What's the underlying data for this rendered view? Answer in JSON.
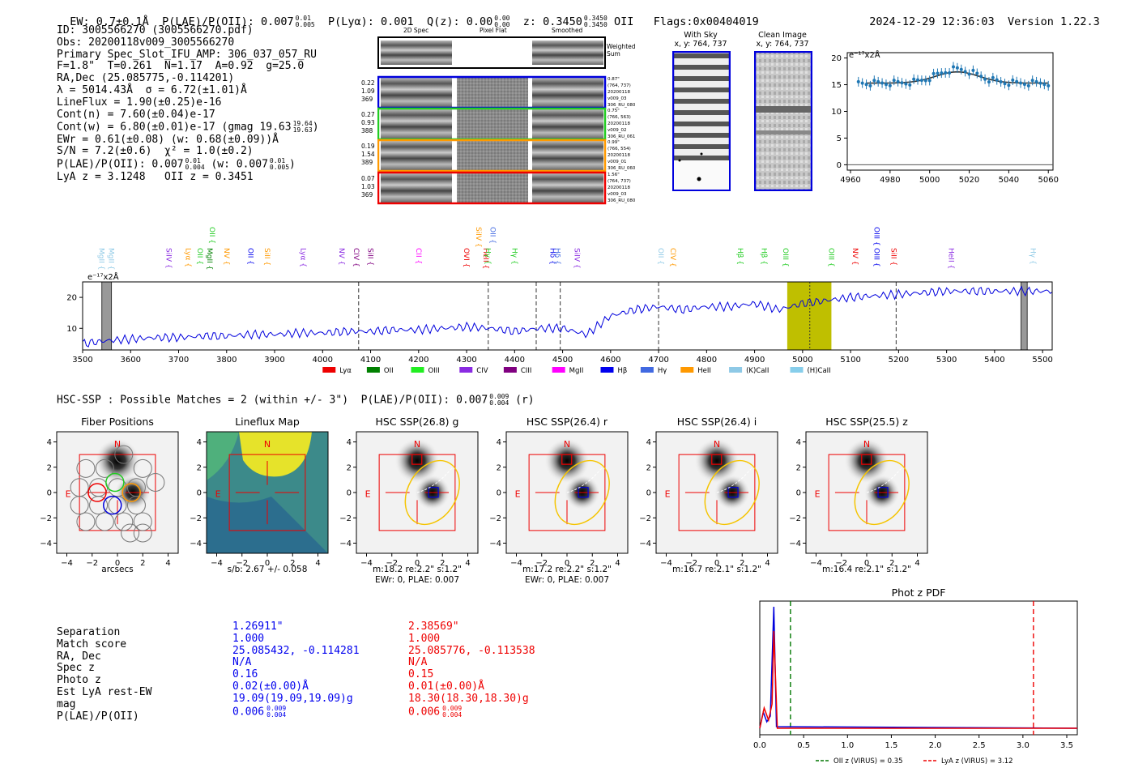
{
  "header": {
    "ew": "EW: 0.7±0.1Å",
    "plae_label": "P(LAE)/P(OII): 0.007",
    "plae_hi": "0.01",
    "plae_lo": "0.005",
    "plya": "P(Lyα): 0.001",
    "qz_label": "Q(z): 0.00",
    "qz_hi": "0.00",
    "qz_lo": "0.00",
    "z_label": "z: 0.3450",
    "z_hi": "0.3450",
    "z_lo": "0.3450",
    "z_line": "OII",
    "flags": "Flags:0x00404019",
    "datetime": "2024-12-29 12:36:03",
    "version": "Version 1.22.3"
  },
  "info": {
    "id": "ID: 3005566270 (3005566270.pdf)",
    "obs": "Obs: 20200118v009_3005566270",
    "primary": "Primary Spec_Slot_IFU_AMP: 306_037_057_RU",
    "params": "F=1.8\"  T=0.261  N=1.17  A=0.92  g=25.0",
    "radec": "RA,Dec (25.085775,-0.114201)",
    "lambda": "λ = 5014.43Å  σ = 6.72(±1.01)Å",
    "lineflux": "LineFlux = 1.90(±0.25)e-16",
    "contn": "Cont(n) = 7.60(±0.04)e-17",
    "contw": "Cont(w) = 6.80(±0.01)e-17 (gmag 19.63",
    "contw_hi": "19.64",
    "contw_lo": "19.63",
    "ewr": "EWr = 0.61(±0.08) (w: 0.68(±0.09))Å",
    "sn": "S/N = 7.2(±0.6)  χ² = 1.0(±0.2)",
    "plae": "P(LAE)/P(OII): 0.007",
    "plae_hi": "0.01",
    "plae_lo": "0.004",
    "plae_w": "(w: 0.007",
    "plae_w_hi": "0.01",
    "plae_w_lo": "0.005",
    "lya_z": "LyA z = 3.1248   OII z = 0.3451"
  },
  "cutouts": {
    "col_2d": "2D Spec",
    "col_flat": "Pixel Flat",
    "col_smooth": "Smoothed",
    "weighted": "Weighted Sum",
    "rows": [
      {
        "left": [
          "0.22",
          "1.09",
          "369"
        ],
        "right": [
          "0.87\"",
          "(764, 737)",
          "20200118",
          "v009_03",
          "306_RU_080"
        ],
        "color": "#0000dd"
      },
      {
        "left": [
          "0.27",
          "0.93",
          "388"
        ],
        "right": [
          "0.75\"",
          "(766, 563)",
          "20200118",
          "v009_02",
          "306_RU_061"
        ],
        "color": "#22cc22"
      },
      {
        "left": [
          "0.19",
          "1.54",
          "389"
        ],
        "right": [
          "0.99\"",
          "(766, 554)",
          "20200118",
          "v009_01",
          "306_RU_060"
        ],
        "color": "#ff9900"
      },
      {
        "left": [
          "0.07",
          "1.03",
          "369"
        ],
        "right": [
          "1.56\"",
          "(764, 737)",
          "20200118",
          "v009_03",
          "306_RU_080"
        ],
        "color": "#ee0000"
      }
    ],
    "with_sky": "With Sky",
    "with_sky_xy": "x, y: 764, 737",
    "clean": "Clean Image",
    "clean_xy": "x, y: 764, 737"
  },
  "zoom_chart": {
    "ylabel": "e⁻¹⁷x2Å",
    "xticks": [
      "4960",
      "4980",
      "5000",
      "5020",
      "5040",
      "5060"
    ],
    "yticks": [
      "0",
      "5",
      "10",
      "15",
      "20"
    ]
  },
  "chart_data": {
    "type": "line",
    "title": "",
    "ylabel": "e⁻¹⁷x2Å",
    "xlim": [
      3500,
      5520
    ],
    "ylim": [
      3,
      25
    ],
    "xticks": [
      "3500",
      "3600",
      "3700",
      "3800",
      "3900",
      "4000",
      "4100",
      "4200",
      "4300",
      "4400",
      "4500",
      "4600",
      "4700",
      "4800",
      "4900",
      "5000",
      "5100",
      "5200",
      "5300",
      "5400",
      "5500"
    ],
    "yticks": [
      "10",
      "20"
    ],
    "x": [
      3500,
      3550,
      3600,
      3650,
      3700,
      3750,
      3800,
      3850,
      3900,
      3950,
      4000,
      4050,
      4100,
      4150,
      4200,
      4250,
      4300,
      4350,
      4400,
      4450,
      4500,
      4550,
      4600,
      4650,
      4700,
      4750,
      4800,
      4850,
      4900,
      4950,
      5000,
      5050,
      5100,
      5150,
      5200,
      5250,
      5300,
      5350,
      5400,
      5450,
      5500,
      5520
    ],
    "values": [
      5,
      6,
      6.5,
      7,
      7,
      7.5,
      7.5,
      8,
      8,
      8.5,
      8.5,
      9,
      9,
      9.5,
      9.5,
      10,
      10.5,
      10,
      9,
      10,
      10,
      8,
      14,
      16,
      17,
      16,
      17,
      17,
      18,
      16,
      18,
      19,
      20,
      20.5,
      21,
      21.5,
      22,
      22,
      22,
      22,
      22,
      22
    ],
    "series_name": "spectrum",
    "line_labels": [
      {
        "x": 3540,
        "t": "MgII",
        "c": "#8ec9e6"
      },
      {
        "x": 3560,
        "t": "MgII",
        "c": "#8ec9e6"
      },
      {
        "x": 3680,
        "t": "SiIV",
        "c": "#8a2be2"
      },
      {
        "x": 3720,
        "t": "Lyα",
        "c": "#ff9900"
      },
      {
        "x": 3745,
        "t": "OII",
        "c": "#22cc22"
      },
      {
        "x": 3765,
        "t": "MgII",
        "c": "#008000"
      },
      {
        "x": 3800,
        "t": "NV",
        "c": "#ff9900"
      },
      {
        "x": 3850,
        "t": "OII",
        "c": "#0000ee"
      },
      {
        "x": 3885,
        "t": "SiII",
        "c": "#ff9900"
      },
      {
        "x": 3960,
        "t": "Lyα",
        "c": "#8a2be2"
      },
      {
        "x": 4040,
        "t": "NV",
        "c": "#8a2be2"
      },
      {
        "x": 4070,
        "t": "CIV",
        "c": "#800080"
      },
      {
        "x": 4100,
        "t": "SiII",
        "c": "#800080"
      },
      {
        "x": 4200,
        "t": "CII",
        "c": "#ff00ff"
      },
      {
        "x": 4300,
        "t": "OVI",
        "c": "#ee0000"
      },
      {
        "x": 4340,
        "t": "HeII",
        "c": "#ee0000"
      },
      {
        "x": 4345,
        "t": "Hγ",
        "c": "#22cc22"
      },
      {
        "x": 4400,
        "t": "Hγ",
        "c": "#22cc22"
      },
      {
        "x": 4480,
        "t": "Hδ",
        "c": "#0000ee"
      },
      {
        "x": 4490,
        "t": "Hδ",
        "c": "#4169e1"
      },
      {
        "x": 4530,
        "t": "SiIV",
        "c": "#8a2be2"
      },
      {
        "x": 4705,
        "t": "OII",
        "c": "#8ec9e6"
      },
      {
        "x": 4730,
        "t": "CIV",
        "c": "#ff9900"
      },
      {
        "x": 4870,
        "t": "Hβ",
        "c": "#22cc22"
      },
      {
        "x": 4920,
        "t": "Hβ",
        "c": "#22cc22"
      },
      {
        "x": 4965,
        "t": "OIII",
        "c": "#22cc22"
      },
      {
        "x": 5060,
        "t": "OIII",
        "c": "#22cc22"
      },
      {
        "x": 5110,
        "t": "NV",
        "c": "#ee0000"
      },
      {
        "x": 5155,
        "t": "OIII",
        "c": "#0000ee"
      },
      {
        "x": 5190,
        "t": "SiII",
        "c": "#ee0000"
      },
      {
        "x": 5310,
        "t": "HeII",
        "c": "#8a2be2"
      },
      {
        "x": 5480,
        "t": "Hγ",
        "c": "#8ec9e6"
      }
    ],
    "upper_labels": [
      {
        "x": 3770,
        "t": "OII",
        "c": "#22cc22"
      },
      {
        "x": 4325,
        "t": "SiIV",
        "c": "#ff9900"
      },
      {
        "x": 4355,
        "t": "OII",
        "c": "#4169e1"
      },
      {
        "x": 5155,
        "t": "OIII",
        "c": "#0000ee"
      }
    ],
    "dashed_lines": [
      4075,
      4345,
      4445,
      4495,
      4700,
      5195
    ],
    "legend": [
      {
        "t": "Lyα",
        "c": "#ee0000"
      },
      {
        "t": "OII",
        "c": "#008000"
      },
      {
        "t": "OIII",
        "c": "#22ee22"
      },
      {
        "t": "CIV",
        "c": "#8a2be2"
      },
      {
        "t": "CIII",
        "c": "#800080"
      },
      {
        "t": "MgII",
        "c": "#ff00ff"
      },
      {
        "t": "Hβ",
        "c": "#0000ee"
      },
      {
        "t": "Hγ",
        "c": "#4169e1"
      },
      {
        "t": "HeII",
        "c": "#ff9900"
      },
      {
        "t": "(K)CaII",
        "c": "#8ec9e6"
      },
      {
        "t": "(H)CaII",
        "c": "#87ceeb"
      }
    ]
  },
  "hsc": {
    "summary": "HSC-SSP : Possible Matches = 2 (within +/- 3\")  P(LAE)/P(OII): 0.007",
    "summary_hi": "0.009",
    "summary_lo": "0.004",
    "summary_tail": "(r)",
    "panels": [
      {
        "title": "Fiber Positions",
        "sub1": "arcsecs",
        "sub2": ""
      },
      {
        "title": "Lineflux Map",
        "sub1": "s/b: 2.67 +/- 0.058",
        "sub2": ""
      },
      {
        "title": "HSC SSP(26.8) g",
        "sub1": "m:18.2  re:2.2\"  s:1.2\"",
        "sub2": "EWr: 0, PLAE: 0.007"
      },
      {
        "title": "HSC SSP(26.4) r",
        "sub1": "m:17.2  re:2.2\"  s:1.2\"",
        "sub2": "EWr: 0, PLAE: 0.007"
      },
      {
        "title": "HSC SSP(26.4) i",
        "sub1": "m:16.7  re:2.1\"  s:1.2\"",
        "sub2": ""
      },
      {
        "title": "HSC SSP(25.5) z",
        "sub1": "m:16.4  re:2.1\"  s:1.2\"",
        "sub2": ""
      }
    ],
    "xticks": [
      "−4",
      "−2",
      "0",
      "2",
      "4"
    ],
    "yticks": [
      "4",
      "2",
      "0",
      "−2",
      "−4"
    ],
    "north": "N",
    "east": "E"
  },
  "matches": {
    "labels": [
      "Separation",
      "Match score",
      "RA, Dec",
      "Spec z",
      "Photo z",
      "Est LyA rest-EW",
      "mag",
      "P(LAE)/P(OII)"
    ],
    "m1": [
      "1.26911\"",
      "1.000",
      "25.085432, -0.114281",
      "N/A",
      "0.16",
      "0.02(±0.00)Å",
      "19.09(19.09,19.09)g",
      "0.006"
    ],
    "m1_plae_hi": "0.009",
    "m1_plae_lo": "0.004",
    "m2": [
      "2.38569\"",
      "1.000",
      "25.085776, -0.113538",
      "N/A",
      "0.15",
      "0.01(±0.00)Å",
      "18.30(18.30,18.30)g",
      "0.006"
    ],
    "m2_plae_hi": "0.009",
    "m2_plae_lo": "0.004"
  },
  "photz": {
    "title": "Phot z PDF",
    "xticks": [
      "0.0",
      "0.5",
      "1.0",
      "1.5",
      "2.0",
      "2.5",
      "3.0",
      "3.5"
    ],
    "legend_oii": "OII z (VIRUS) = 0.35",
    "legend_lya": "LyA z (VIRUS) = 3.12",
    "oii_z": 0.35,
    "lya_z": 3.12
  }
}
